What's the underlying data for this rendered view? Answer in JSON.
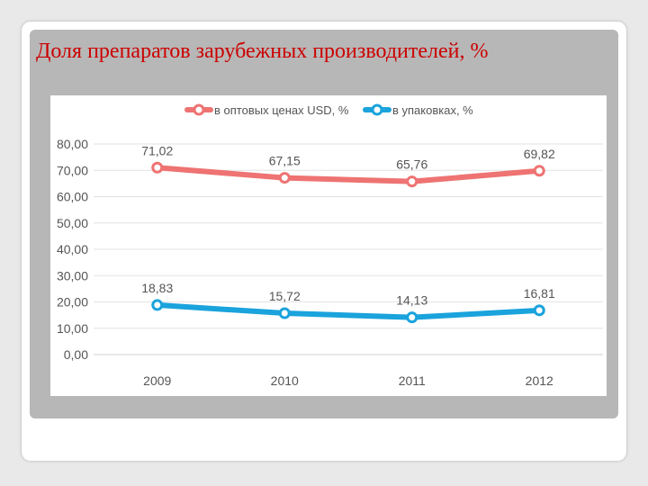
{
  "slide": {
    "title": "Доля препаратов зарубежных производителей, %"
  },
  "chart_data": {
    "type": "line",
    "title": "",
    "xlabel": "",
    "ylabel": "",
    "categories": [
      "2009",
      "2010",
      "2011",
      "2012"
    ],
    "ylim": [
      0,
      80
    ],
    "yticks": [
      "0,00",
      "10,00",
      "20,00",
      "30,00",
      "40,00",
      "50,00",
      "60,00",
      "70,00",
      "80,00"
    ],
    "grid": true,
    "legend_position": "top",
    "series": [
      {
        "name": "в оптовых ценах USD, %",
        "values": [
          71.02,
          67.15,
          65.76,
          69.82
        ],
        "labels": [
          "71,02",
          "67,15",
          "65,76",
          "69,82"
        ],
        "color": "#ee7372"
      },
      {
        "name": "в упаковках, %",
        "values": [
          18.83,
          15.72,
          14.13,
          16.81
        ],
        "labels": [
          "18,83",
          "15,72",
          "14,13",
          "16,81"
        ],
        "color": "#1aa3dc"
      }
    ]
  }
}
